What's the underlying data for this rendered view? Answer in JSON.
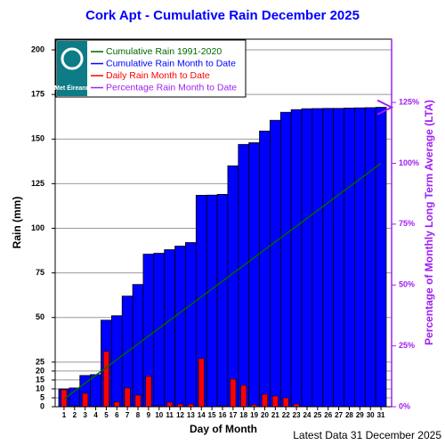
{
  "chart_data": {
    "type": "bar",
    "title": "Cork Apt - Cumulative Rain December   2025",
    "xlabel": "Day of Month",
    "ylabel": "Rain (mm)",
    "y2label": "Percentage  of Monthly Long Term Average (LTA)",
    "footer": "Latest Data 31 December 2025",
    "logo_text": "Met Éireann",
    "categories": [
      "1",
      "2",
      "3",
      "4",
      "5",
      "6",
      "7",
      "8",
      "9",
      "10",
      "11",
      "12",
      "13",
      "14",
      "15",
      "16",
      "17",
      "18",
      "19",
      "20",
      "21",
      "22",
      "23",
      "24",
      "25",
      "26",
      "27",
      "28",
      "29",
      "30",
      "31"
    ],
    "series": [
      {
        "name": "Cumulative Rain 1991-2020",
        "color": "#006400",
        "kind": "line",
        "values": [
          4.4,
          8.8,
          13.2,
          17.6,
          22.0,
          26.4,
          30.8,
          35.2,
          39.6,
          44.0,
          48.4,
          52.8,
          57.2,
          61.6,
          66.0,
          70.4,
          74.8,
          79.2,
          83.6,
          88.0,
          92.4,
          96.8,
          101.2,
          105.6,
          110.0,
          114.4,
          118.8,
          123.2,
          127.6,
          132.0,
          136.4
        ]
      },
      {
        "name": "Cumulative Rain Month to Date",
        "color": "#0000ff",
        "kind": "bar",
        "values": [
          10,
          10.5,
          17.5,
          18,
          48.5,
          51,
          62,
          68.5,
          85.5,
          86,
          88,
          90,
          92,
          118.5,
          118.6,
          119,
          135,
          147,
          148,
          154.5,
          160.5,
          165,
          166.5,
          167,
          167.1,
          167.2,
          167.2,
          167.4,
          167.5,
          167.6,
          167.8
        ]
      },
      {
        "name": "Daily Rain Month to Date",
        "color": "#ff0000",
        "kind": "narrow-bar",
        "values": [
          9.5,
          0.5,
          7.5,
          0.3,
          31,
          2.7,
          10.5,
          6.5,
          17,
          0.5,
          2.5,
          1.5,
          1.5,
          27,
          0.1,
          0.5,
          15.5,
          12,
          1.2,
          7,
          6,
          5,
          1.5,
          0.3,
          0.1,
          0.1,
          0,
          0.2,
          0.1,
          0.1,
          0.2
        ]
      },
      {
        "name": "Percentage Rain Month to Date",
        "color": "#a020f0",
        "kind": "marker",
        "axis": "y2",
        "values": [
          null,
          null,
          null,
          null,
          null,
          null,
          null,
          null,
          null,
          null,
          null,
          null,
          null,
          null,
          null,
          null,
          null,
          null,
          null,
          null,
          null,
          null,
          null,
          null,
          null,
          null,
          null,
          null,
          null,
          null,
          123
        ]
      }
    ],
    "ylim": [
      0,
      206
    ],
    "yticks": [
      0,
      5,
      10,
      15,
      20,
      25,
      50,
      75,
      100,
      125,
      150,
      175,
      200
    ],
    "y2lim": [
      0,
      151
    ],
    "y2ticks": [
      {
        "value": 0,
        "label": "0%"
      },
      {
        "value": 25,
        "label": "25%"
      },
      {
        "value": 50,
        "label": "50%"
      },
      {
        "value": 75,
        "label": "75%"
      },
      {
        "value": 100,
        "label": "100%"
      },
      {
        "value": 125,
        "label": "125%"
      }
    ],
    "y2color": "#a020f0",
    "title_color": "#0000ff",
    "grid": true
  }
}
